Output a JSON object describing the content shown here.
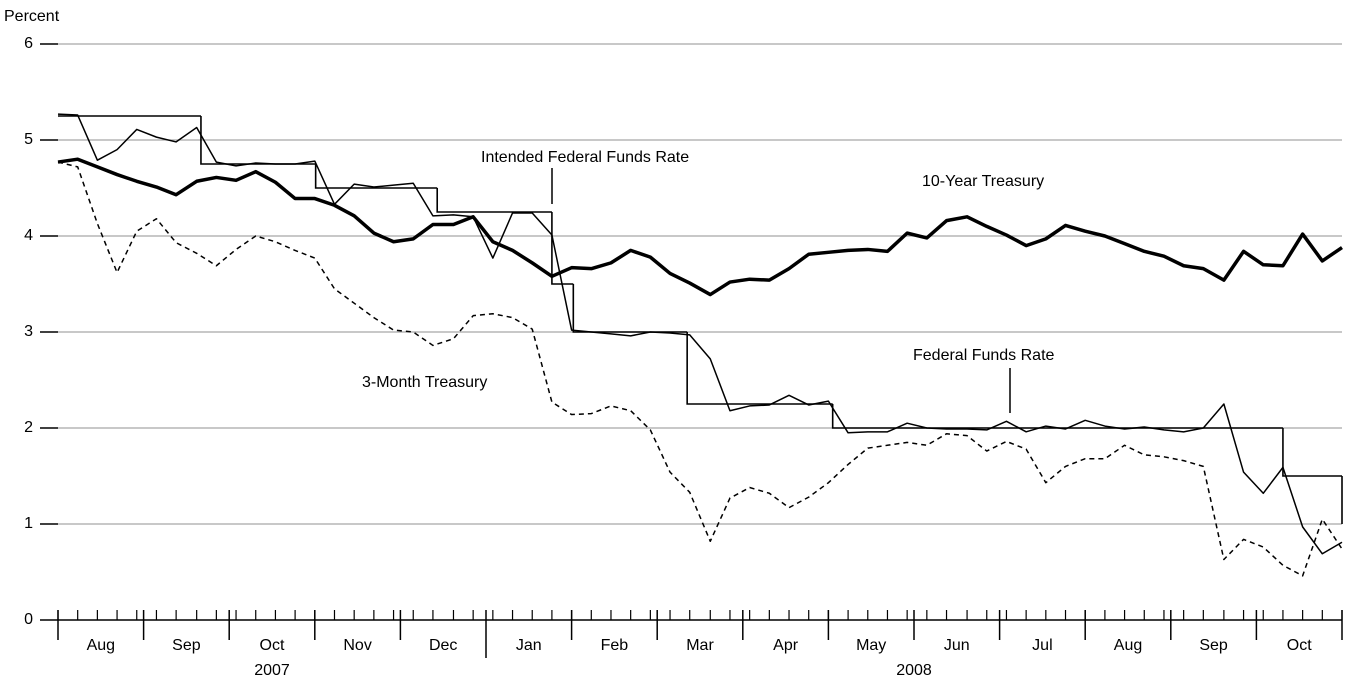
{
  "chart_data": {
    "type": "line",
    "y_axis_label": "Percent",
    "categories": [
      "Aug",
      "Sep",
      "Oct",
      "Nov",
      "Dec",
      "Jan",
      "Feb",
      "Mar",
      "Apr",
      "May",
      "Jun",
      "Jul",
      "Aug",
      "Sep",
      "Oct"
    ],
    "year_labels": [
      "2007",
      "2008"
    ],
    "xlim": [
      0,
      15
    ],
    "ylim": [
      0,
      6
    ],
    "yticks": [
      0,
      1,
      2,
      3,
      4,
      5,
      6
    ],
    "grid": true,
    "x": [
      0,
      0.23,
      0.46,
      0.69,
      0.92,
      1.15,
      1.38,
      1.62,
      1.85,
      2.08,
      2.31,
      2.54,
      2.77,
      3,
      3.23,
      3.46,
      3.69,
      3.92,
      4.15,
      4.38,
      4.62,
      4.85,
      5.08,
      5.31,
      5.54,
      5.77,
      6,
      6.23,
      6.46,
      6.69,
      6.92,
      7.15,
      7.38,
      7.62,
      7.85,
      8.08,
      8.31,
      8.54,
      8.77,
      9,
      9.23,
      9.46,
      9.69,
      9.92,
      10.15,
      10.38,
      10.62,
      10.85,
      11.08,
      11.31,
      11.54,
      11.77,
      12,
      12.23,
      12.46,
      12.69,
      12.92,
      13.15,
      13.38,
      13.62,
      13.85,
      14.08,
      14.31,
      14.54,
      14.77,
      15
    ],
    "series": [
      {
        "name": "10-Year Treasury",
        "color": "#000000",
        "style": "thick",
        "values": [
          4.77,
          4.8,
          4.72,
          4.64,
          4.57,
          4.51,
          4.43,
          4.57,
          4.61,
          4.58,
          4.67,
          4.56,
          4.39,
          4.39,
          4.32,
          4.21,
          4.03,
          3.94,
          3.97,
          4.12,
          4.12,
          4.2,
          3.94,
          3.85,
          3.72,
          3.58,
          3.67,
          3.66,
          3.72,
          3.85,
          3.78,
          3.61,
          3.51,
          3.39,
          3.52,
          3.55,
          3.54,
          3.66,
          3.81,
          3.83,
          3.85,
          3.86,
          3.84,
          4.03,
          3.98,
          4.16,
          4.2,
          4.1,
          4.01,
          3.9,
          3.97,
          4.11,
          4.05,
          4.0,
          3.92,
          3.84,
          3.79,
          3.69,
          3.66,
          3.54,
          3.84,
          3.7,
          3.69,
          4.02,
          3.74,
          3.88
        ]
      },
      {
        "name": "Federal Funds Rate",
        "color": "#000000",
        "style": "thin",
        "values": [
          5.27,
          5.26,
          4.79,
          4.9,
          5.11,
          5.03,
          4.98,
          5.13,
          4.77,
          4.73,
          4.76,
          4.75,
          4.75,
          4.78,
          4.33,
          4.54,
          4.51,
          4.53,
          4.55,
          4.21,
          4.22,
          4.2,
          3.77,
          4.24,
          4.24,
          4.01,
          3.02,
          3.0,
          2.98,
          2.96,
          3.0,
          2.99,
          2.97,
          2.72,
          2.18,
          2.23,
          2.24,
          2.34,
          2.24,
          2.28,
          1.95,
          1.96,
          1.96,
          2.05,
          2.0,
          1.99,
          1.99,
          1.98,
          2.07,
          1.96,
          2.02,
          1.99,
          2.08,
          2.02,
          1.99,
          2.01,
          1.98,
          1.96,
          2.0,
          2.25,
          1.54,
          1.32,
          1.59,
          0.97,
          0.69,
          0.81
        ]
      },
      {
        "name": "3-Month Treasury",
        "color": "#000000",
        "style": "dashed",
        "values": [
          4.77,
          4.72,
          4.13,
          3.62,
          4.05,
          4.18,
          3.93,
          3.82,
          3.69,
          3.86,
          4.0,
          3.94,
          3.85,
          3.77,
          3.45,
          3.3,
          3.15,
          3.02,
          3.0,
          2.86,
          2.93,
          3.17,
          3.19,
          3.15,
          3.03,
          2.27,
          2.14,
          2.15,
          2.23,
          2.18,
          1.98,
          1.54,
          1.33,
          0.82,
          1.27,
          1.38,
          1.32,
          1.17,
          1.28,
          1.43,
          1.62,
          1.79,
          1.82,
          1.85,
          1.82,
          1.94,
          1.92,
          1.76,
          1.86,
          1.78,
          1.43,
          1.6,
          1.68,
          1.68,
          1.82,
          1.72,
          1.7,
          1.66,
          1.6,
          0.63,
          0.84,
          0.76,
          0.57,
          0.46,
          1.05,
          0.74
        ]
      },
      {
        "name": "Intended Federal Funds Rate",
        "color": "#000000",
        "style": "step",
        "x": [
          0,
          1.67,
          3.01,
          4.43,
          5.77,
          6.02,
          7.35,
          9.05,
          14.31,
          15
        ],
        "values": [
          5.25,
          4.75,
          4.5,
          4.25,
          3.5,
          3.0,
          2.25,
          2.0,
          1.5,
          1.0
        ]
      }
    ]
  }
}
